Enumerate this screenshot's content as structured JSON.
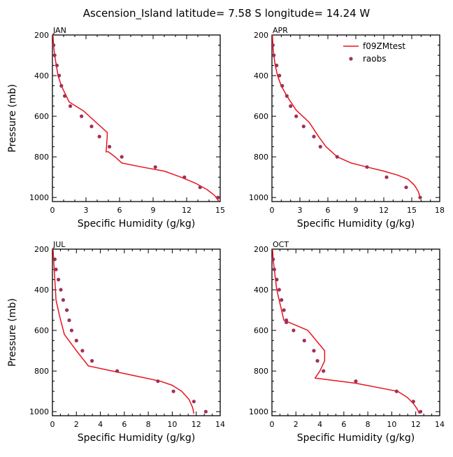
{
  "title": "Ascension_Island  latitude= 7.58 S longitude= 14.24 W",
  "colors": {
    "model": "#e8141e",
    "obs": "#a0305a",
    "axis": "#000000"
  },
  "legend": {
    "model_label": "f09ZMtest",
    "obs_label": "raobs",
    "placement": "top-right of APR panel"
  },
  "chart_data": [
    {
      "type": "line",
      "panel": "JAN",
      "xlabel": "Specific Humidity (g/kg)",
      "ylabel": "Pressure (mb)",
      "xlim": [
        0,
        15
      ],
      "xticks": [
        0,
        3,
        6,
        9,
        12,
        15
      ],
      "ylim": [
        200,
        1020
      ],
      "yticks": [
        200,
        400,
        600,
        800,
        1000
      ],
      "y_inverted": true,
      "series": [
        {
          "name": "f09ZMtest",
          "kind": "line",
          "x": [
            0.05,
            0.1,
            0.2,
            0.35,
            0.5,
            0.8,
            1.5,
            2.8,
            4.9,
            4.9,
            4.8,
            5.0,
            5.6,
            6.2,
            8.0,
            10.0,
            11.5,
            12.8,
            13.8,
            14.5,
            14.9
          ],
          "y": [
            200,
            250,
            300,
            350,
            400,
            450,
            530,
            575,
            680,
            700,
            775,
            775,
            800,
            830,
            850,
            870,
            900,
            930,
            960,
            990,
            1020
          ]
        },
        {
          "name": "raobs",
          "kind": "scatter",
          "x": [
            0.1,
            0.2,
            0.4,
            0.6,
            0.8,
            1.1,
            1.6,
            2.6,
            3.5,
            4.2,
            5.1,
            6.2,
            9.2,
            11.8,
            13.2,
            14.8
          ],
          "y": [
            250,
            300,
            350,
            400,
            450,
            500,
            550,
            600,
            650,
            700,
            750,
            800,
            850,
            900,
            950,
            1000
          ]
        }
      ]
    },
    {
      "type": "line",
      "panel": "APR",
      "xlabel": "Specific Humidity (g/kg)",
      "ylabel": "",
      "xlim": [
        0,
        18
      ],
      "xticks": [
        0,
        3,
        6,
        9,
        12,
        15,
        18
      ],
      "ylim": [
        200,
        1020
      ],
      "yticks": [
        200,
        400,
        600,
        800,
        1000
      ],
      "y_inverted": true,
      "series": [
        {
          "name": "f09ZMtest",
          "kind": "line",
          "x": [
            0.05,
            0.1,
            0.2,
            0.35,
            0.6,
            1.0,
            1.6,
            2.6,
            4.0,
            5.0,
            5.8,
            7.0,
            8.5,
            10.2,
            12.0,
            13.5,
            14.6,
            15.3,
            15.7,
            15.9
          ],
          "y": [
            200,
            250,
            300,
            350,
            400,
            450,
            500,
            570,
            630,
            700,
            750,
            800,
            830,
            850,
            870,
            890,
            910,
            940,
            970,
            1000
          ]
        },
        {
          "name": "raobs",
          "kind": "scatter",
          "x": [
            0.1,
            0.2,
            0.5,
            0.8,
            1.1,
            1.6,
            2.0,
            2.6,
            3.4,
            4.5,
            5.2,
            7.0,
            10.2,
            12.3,
            14.4,
            15.9
          ],
          "y": [
            250,
            300,
            350,
            400,
            450,
            500,
            550,
            600,
            650,
            700,
            750,
            800,
            850,
            900,
            950,
            1000
          ]
        }
      ]
    },
    {
      "type": "line",
      "panel": "JUL",
      "xlabel": "Specific Humidity (g/kg)",
      "ylabel": "Pressure (mb)",
      "xlim": [
        0,
        14
      ],
      "xticks": [
        0,
        2,
        4,
        6,
        8,
        10,
        12,
        14
      ],
      "ylim": [
        200,
        1020
      ],
      "yticks": [
        200,
        400,
        600,
        800,
        1000
      ],
      "y_inverted": true,
      "series": [
        {
          "name": "f09ZMtest",
          "kind": "line",
          "x": [
            0.05,
            0.1,
            0.15,
            0.2,
            0.25,
            0.3,
            0.6,
            1.0,
            2.0,
            3.0,
            5.0,
            7.0,
            9.0,
            10.0,
            10.8,
            11.4,
            11.7,
            11.8
          ],
          "y": [
            200,
            250,
            300,
            350,
            400,
            450,
            530,
            620,
            700,
            775,
            800,
            825,
            850,
            870,
            900,
            940,
            980,
            1010
          ]
        },
        {
          "name": "raobs",
          "kind": "scatter",
          "x": [
            0.2,
            0.3,
            0.5,
            0.7,
            0.9,
            1.2,
            1.4,
            1.6,
            2.0,
            2.5,
            3.3,
            5.4,
            8.8,
            10.1,
            11.8,
            12.8
          ],
          "y": [
            250,
            300,
            350,
            400,
            450,
            500,
            550,
            600,
            650,
            700,
            750,
            800,
            850,
            900,
            950,
            1000
          ]
        }
      ]
    },
    {
      "type": "line",
      "panel": "OCT",
      "xlabel": "Specific Humidity (g/kg)",
      "ylabel": "",
      "xlim": [
        0,
        14
      ],
      "xticks": [
        0,
        2,
        4,
        6,
        8,
        10,
        12,
        14
      ],
      "ylim": [
        200,
        1020
      ],
      "yticks": [
        200,
        400,
        600,
        800,
        1000
      ],
      "y_inverted": true,
      "series": [
        {
          "name": "f09ZMtest",
          "kind": "line",
          "x": [
            0.05,
            0.1,
            0.2,
            0.3,
            0.4,
            0.6,
            1.0,
            2.0,
            3.0,
            4.4,
            4.4,
            4.0,
            3.6,
            7.0,
            10.5,
            11.3,
            11.8,
            12.1,
            12.3
          ],
          "y": [
            200,
            250,
            300,
            350,
            400,
            450,
            550,
            575,
            600,
            700,
            750,
            800,
            835,
            860,
            900,
            930,
            960,
            985,
            1010
          ]
        },
        {
          "name": "raobs",
          "kind": "scatter",
          "x": [
            0.1,
            0.2,
            0.4,
            0.6,
            0.8,
            1.0,
            1.2,
            1.2,
            1.8,
            2.7,
            3.5,
            3.8,
            4.3,
            7.0,
            10.4,
            11.8,
            12.4
          ],
          "y": [
            250,
            300,
            350,
            400,
            450,
            500,
            550,
            560,
            600,
            650,
            700,
            750,
            800,
            850,
            900,
            950,
            1000
          ]
        }
      ]
    }
  ]
}
